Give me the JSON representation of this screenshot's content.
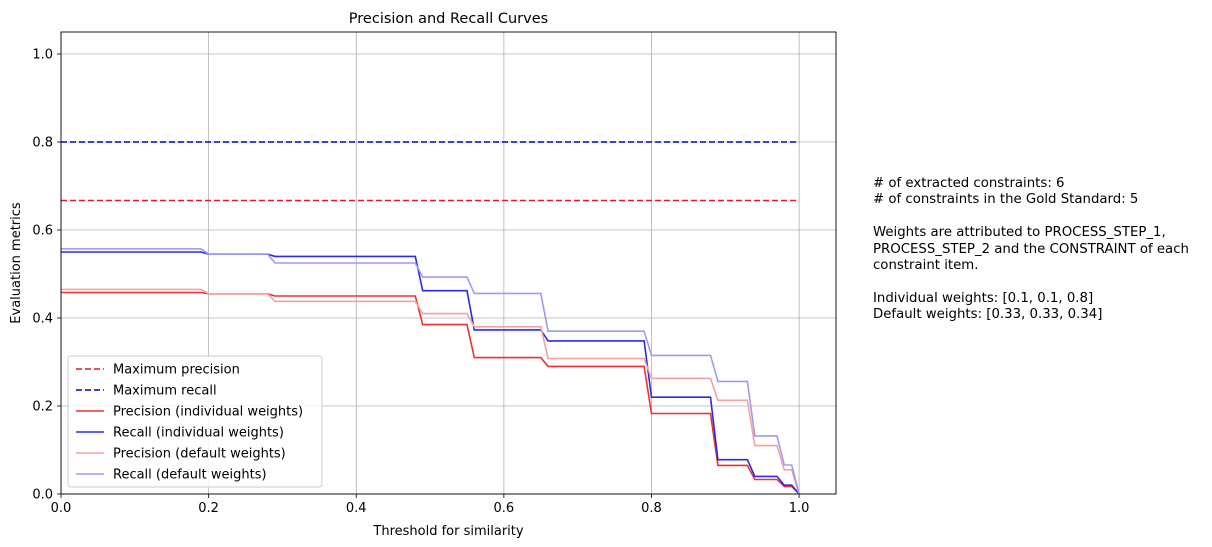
{
  "chart_data": {
    "type": "line",
    "title": "Precision and Recall Curves",
    "xlabel": "Threshold for similarity",
    "ylabel": "Evaluation metrics",
    "xlim": [
      0.0,
      1.05
    ],
    "ylim": [
      0.0,
      1.05
    ],
    "xticks": [
      "0.0",
      "0.2",
      "0.4",
      "0.6",
      "0.8",
      "1.0"
    ],
    "yticks": [
      "0.0",
      "0.2",
      "0.4",
      "0.6",
      "0.8",
      "1.0"
    ],
    "grid": true,
    "legend_position": "lower-left",
    "series": [
      {
        "name": "Maximum precision",
        "style": "dashed",
        "color": "#e41a1c",
        "x": [
          0.0,
          1.0
        ],
        "y": [
          0.667,
          0.667
        ]
      },
      {
        "name": "Maximum recall",
        "style": "dashed",
        "color": "#0000cc",
        "x": [
          0.0,
          1.0
        ],
        "y": [
          0.8,
          0.8
        ]
      },
      {
        "name": "Precision (individual weights)",
        "style": "solid",
        "color": "#f03030",
        "x": [
          0.0,
          0.19,
          0.2,
          0.28,
          0.29,
          0.48,
          0.49,
          0.55,
          0.56,
          0.65,
          0.66,
          0.79,
          0.8,
          0.88,
          0.89,
          0.93,
          0.94,
          0.97,
          0.98,
          0.99,
          1.0
        ],
        "y": [
          0.458,
          0.458,
          0.455,
          0.455,
          0.45,
          0.45,
          0.385,
          0.385,
          0.31,
          0.31,
          0.29,
          0.29,
          0.183,
          0.183,
          0.065,
          0.065,
          0.033,
          0.033,
          0.017,
          0.017,
          0.0
        ]
      },
      {
        "name": "Recall (individual weights)",
        "style": "solid",
        "color": "#2b2be8",
        "x": [
          0.0,
          0.19,
          0.2,
          0.28,
          0.29,
          0.48,
          0.49,
          0.55,
          0.56,
          0.65,
          0.66,
          0.79,
          0.8,
          0.88,
          0.89,
          0.93,
          0.94,
          0.97,
          0.98,
          0.99,
          1.0
        ],
        "y": [
          0.55,
          0.55,
          0.545,
          0.545,
          0.54,
          0.54,
          0.462,
          0.462,
          0.373,
          0.373,
          0.348,
          0.348,
          0.22,
          0.22,
          0.078,
          0.078,
          0.04,
          0.04,
          0.02,
          0.02,
          0.0
        ]
      },
      {
        "name": "Precision (default weights)",
        "style": "solid",
        "color": "#f6a0a0",
        "x": [
          0.0,
          0.19,
          0.2,
          0.28,
          0.29,
          0.48,
          0.49,
          0.55,
          0.56,
          0.65,
          0.66,
          0.79,
          0.8,
          0.88,
          0.89,
          0.93,
          0.94,
          0.97,
          0.98,
          0.99,
          1.0
        ],
        "y": [
          0.465,
          0.465,
          0.455,
          0.455,
          0.438,
          0.438,
          0.41,
          0.41,
          0.38,
          0.38,
          0.308,
          0.308,
          0.263,
          0.263,
          0.213,
          0.213,
          0.11,
          0.11,
          0.055,
          0.055,
          0.0
        ]
      },
      {
        "name": "Recall (default weights)",
        "style": "solid",
        "color": "#9b9bf5",
        "x": [
          0.0,
          0.19,
          0.2,
          0.28,
          0.29,
          0.48,
          0.49,
          0.55,
          0.56,
          0.65,
          0.66,
          0.79,
          0.8,
          0.88,
          0.89,
          0.93,
          0.94,
          0.97,
          0.98,
          0.99,
          1.0
        ],
        "y": [
          0.557,
          0.557,
          0.545,
          0.545,
          0.525,
          0.525,
          0.493,
          0.493,
          0.456,
          0.456,
          0.37,
          0.37,
          0.315,
          0.315,
          0.256,
          0.256,
          0.132,
          0.132,
          0.066,
          0.066,
          0.0
        ]
      }
    ]
  },
  "side_note": {
    "lines": [
      "# of extracted constraints: 6",
      "# of constraints in the Gold Standard: 5",
      "",
      "Weights are attributed to PROCESS_STEP_1,",
      "PROCESS_STEP_2 and the CONSTRAINT of each",
      "constraint item.",
      "",
      "Individual weights: [0.1, 0.1, 0.8]",
      "Default weights: [0.33, 0.33, 0.34]"
    ]
  }
}
